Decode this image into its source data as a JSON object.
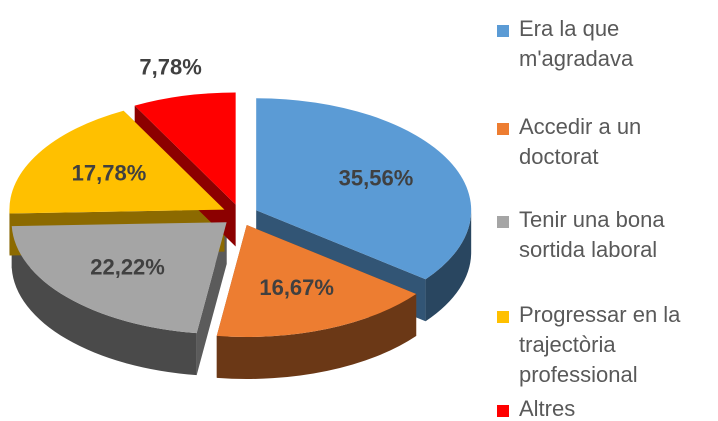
{
  "chart_data": {
    "type": "pie",
    "categories": [
      "Era la que m'agradava",
      "Accedir a un doctorat",
      "Tenir una bona sortida laboral",
      "Progressar en la trajectòria professional",
      "Altres"
    ],
    "values": [
      35.56,
      16.67,
      22.22,
      17.78,
      7.78
    ],
    "value_labels": [
      "35,56%",
      "16,67%",
      "22,22%",
      "17,78%",
      "7,78%"
    ],
    "colors": [
      "#5b9bd5",
      "#ed7d31",
      "#a5a5a5",
      "#ffc000",
      "#ff0000"
    ],
    "legend": "right"
  }
}
